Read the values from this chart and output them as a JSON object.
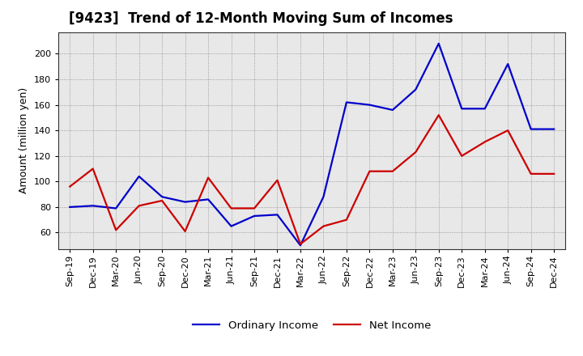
{
  "title": "[9423]  Trend of 12-Month Moving Sum of Incomes",
  "ylabel": "Amount (million yen)",
  "x_labels": [
    "Sep-19",
    "Dec-19",
    "Mar-20",
    "Jun-20",
    "Sep-20",
    "Dec-20",
    "Mar-21",
    "Jun-21",
    "Sep-21",
    "Dec-21",
    "Mar-22",
    "Jun-22",
    "Sep-22",
    "Dec-22",
    "Mar-23",
    "Jun-23",
    "Sep-23",
    "Dec-23",
    "Mar-24",
    "Jun-24",
    "Sep-24",
    "Dec-24"
  ],
  "ordinary_income": [
    80,
    81,
    79,
    104,
    88,
    84,
    86,
    65,
    73,
    74,
    50,
    88,
    162,
    160,
    156,
    172,
    208,
    157,
    157,
    192,
    141,
    141
  ],
  "net_income": [
    96,
    110,
    62,
    81,
    85,
    61,
    103,
    79,
    79,
    101,
    51,
    65,
    70,
    108,
    108,
    123,
    152,
    120,
    131,
    140,
    106,
    106
  ],
  "ordinary_color": "#0000cc",
  "net_color": "#cc0000",
  "ylim_min": 47,
  "ylim_max": 217,
  "yticks": [
    60,
    80,
    100,
    120,
    140,
    160,
    180,
    200
  ],
  "bg_color": "#e8e8e8",
  "grid_color": "#888888",
  "title_fontsize": 12,
  "axis_label_fontsize": 9,
  "tick_fontsize": 8,
  "legend_fontsize": 9.5,
  "line_width": 1.6
}
